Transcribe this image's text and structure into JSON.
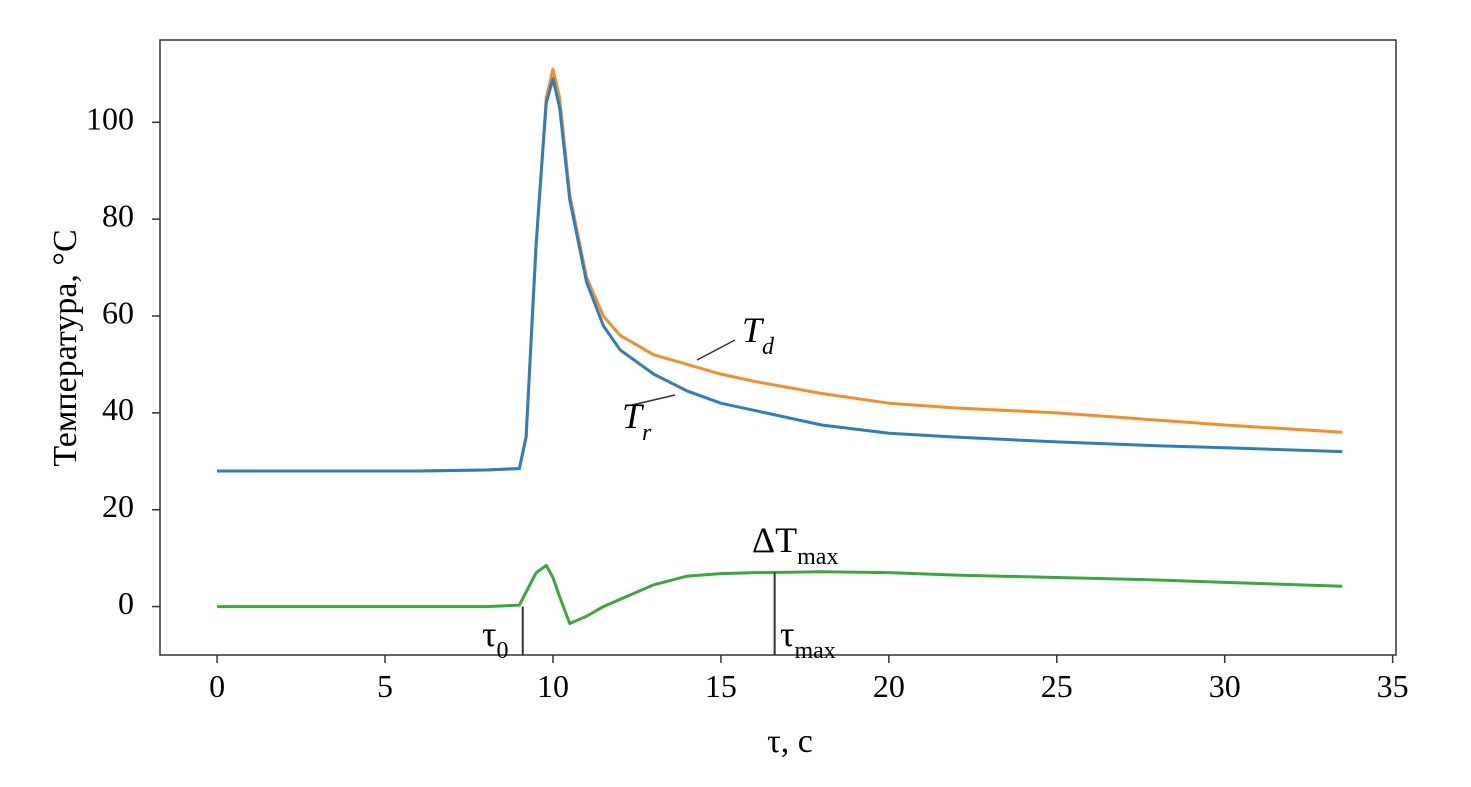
{
  "chart_data": {
    "type": "line",
    "xlabel": "τ, с",
    "ylabel": "Температура, °C",
    "x": [
      0,
      2,
      4,
      6,
      8,
      9,
      9.2,
      9.5,
      9.8,
      10,
      10.2,
      10.5,
      11,
      11.5,
      12,
      13,
      14,
      15,
      16,
      18,
      20,
      22,
      25,
      28,
      30,
      33.5
    ],
    "series": [
      {
        "color": "#f28e2b",
        "values": [
          28,
          28,
          28,
          28,
          28.2,
          28.5,
          35,
          75,
          105,
          111,
          105,
          85,
          68,
          60,
          56,
          52,
          50,
          48,
          46.5,
          44,
          42,
          41,
          40,
          38.5,
          37.5,
          36
        ]
      },
      {
        "color": "#2f7ebc",
        "values": [
          28,
          28,
          28,
          28,
          28.2,
          28.5,
          35,
          75,
          104,
          109,
          103,
          84,
          67,
          58,
          53,
          48,
          44.5,
          42,
          40.5,
          37.5,
          35.8,
          35,
          34,
          33.2,
          32.8,
          32
        ]
      },
      {
        "color": "#3aa83a",
        "values": [
          0,
          0,
          0,
          0,
          0,
          0.3,
          3,
          7,
          8.5,
          6,
          2,
          -3.5,
          -2,
          0,
          1.5,
          4.5,
          6.3,
          6.8,
          7,
          7.2,
          7,
          6.5,
          6,
          5.5,
          5,
          4.2
        ]
      }
    ],
    "annotations": [
      {
        "text": "T",
        "sub": "d"
      },
      {
        "text": "T",
        "sub": "r"
      },
      {
        "text": "ΔT",
        "sub": "max"
      },
      {
        "text": "τ",
        "sub": "0",
        "x": 9.1
      },
      {
        "text": "τ",
        "sub": "max",
        "x": 16.6,
        "y": 7
      }
    ],
    "xlim": [
      -1.7,
      35.1
    ],
    "ylim": [
      -10,
      117
    ],
    "xticks": [
      0,
      5,
      10,
      15,
      20,
      25,
      30,
      35
    ],
    "yticks": [
      0,
      20,
      40,
      60,
      80,
      100
    ]
  }
}
